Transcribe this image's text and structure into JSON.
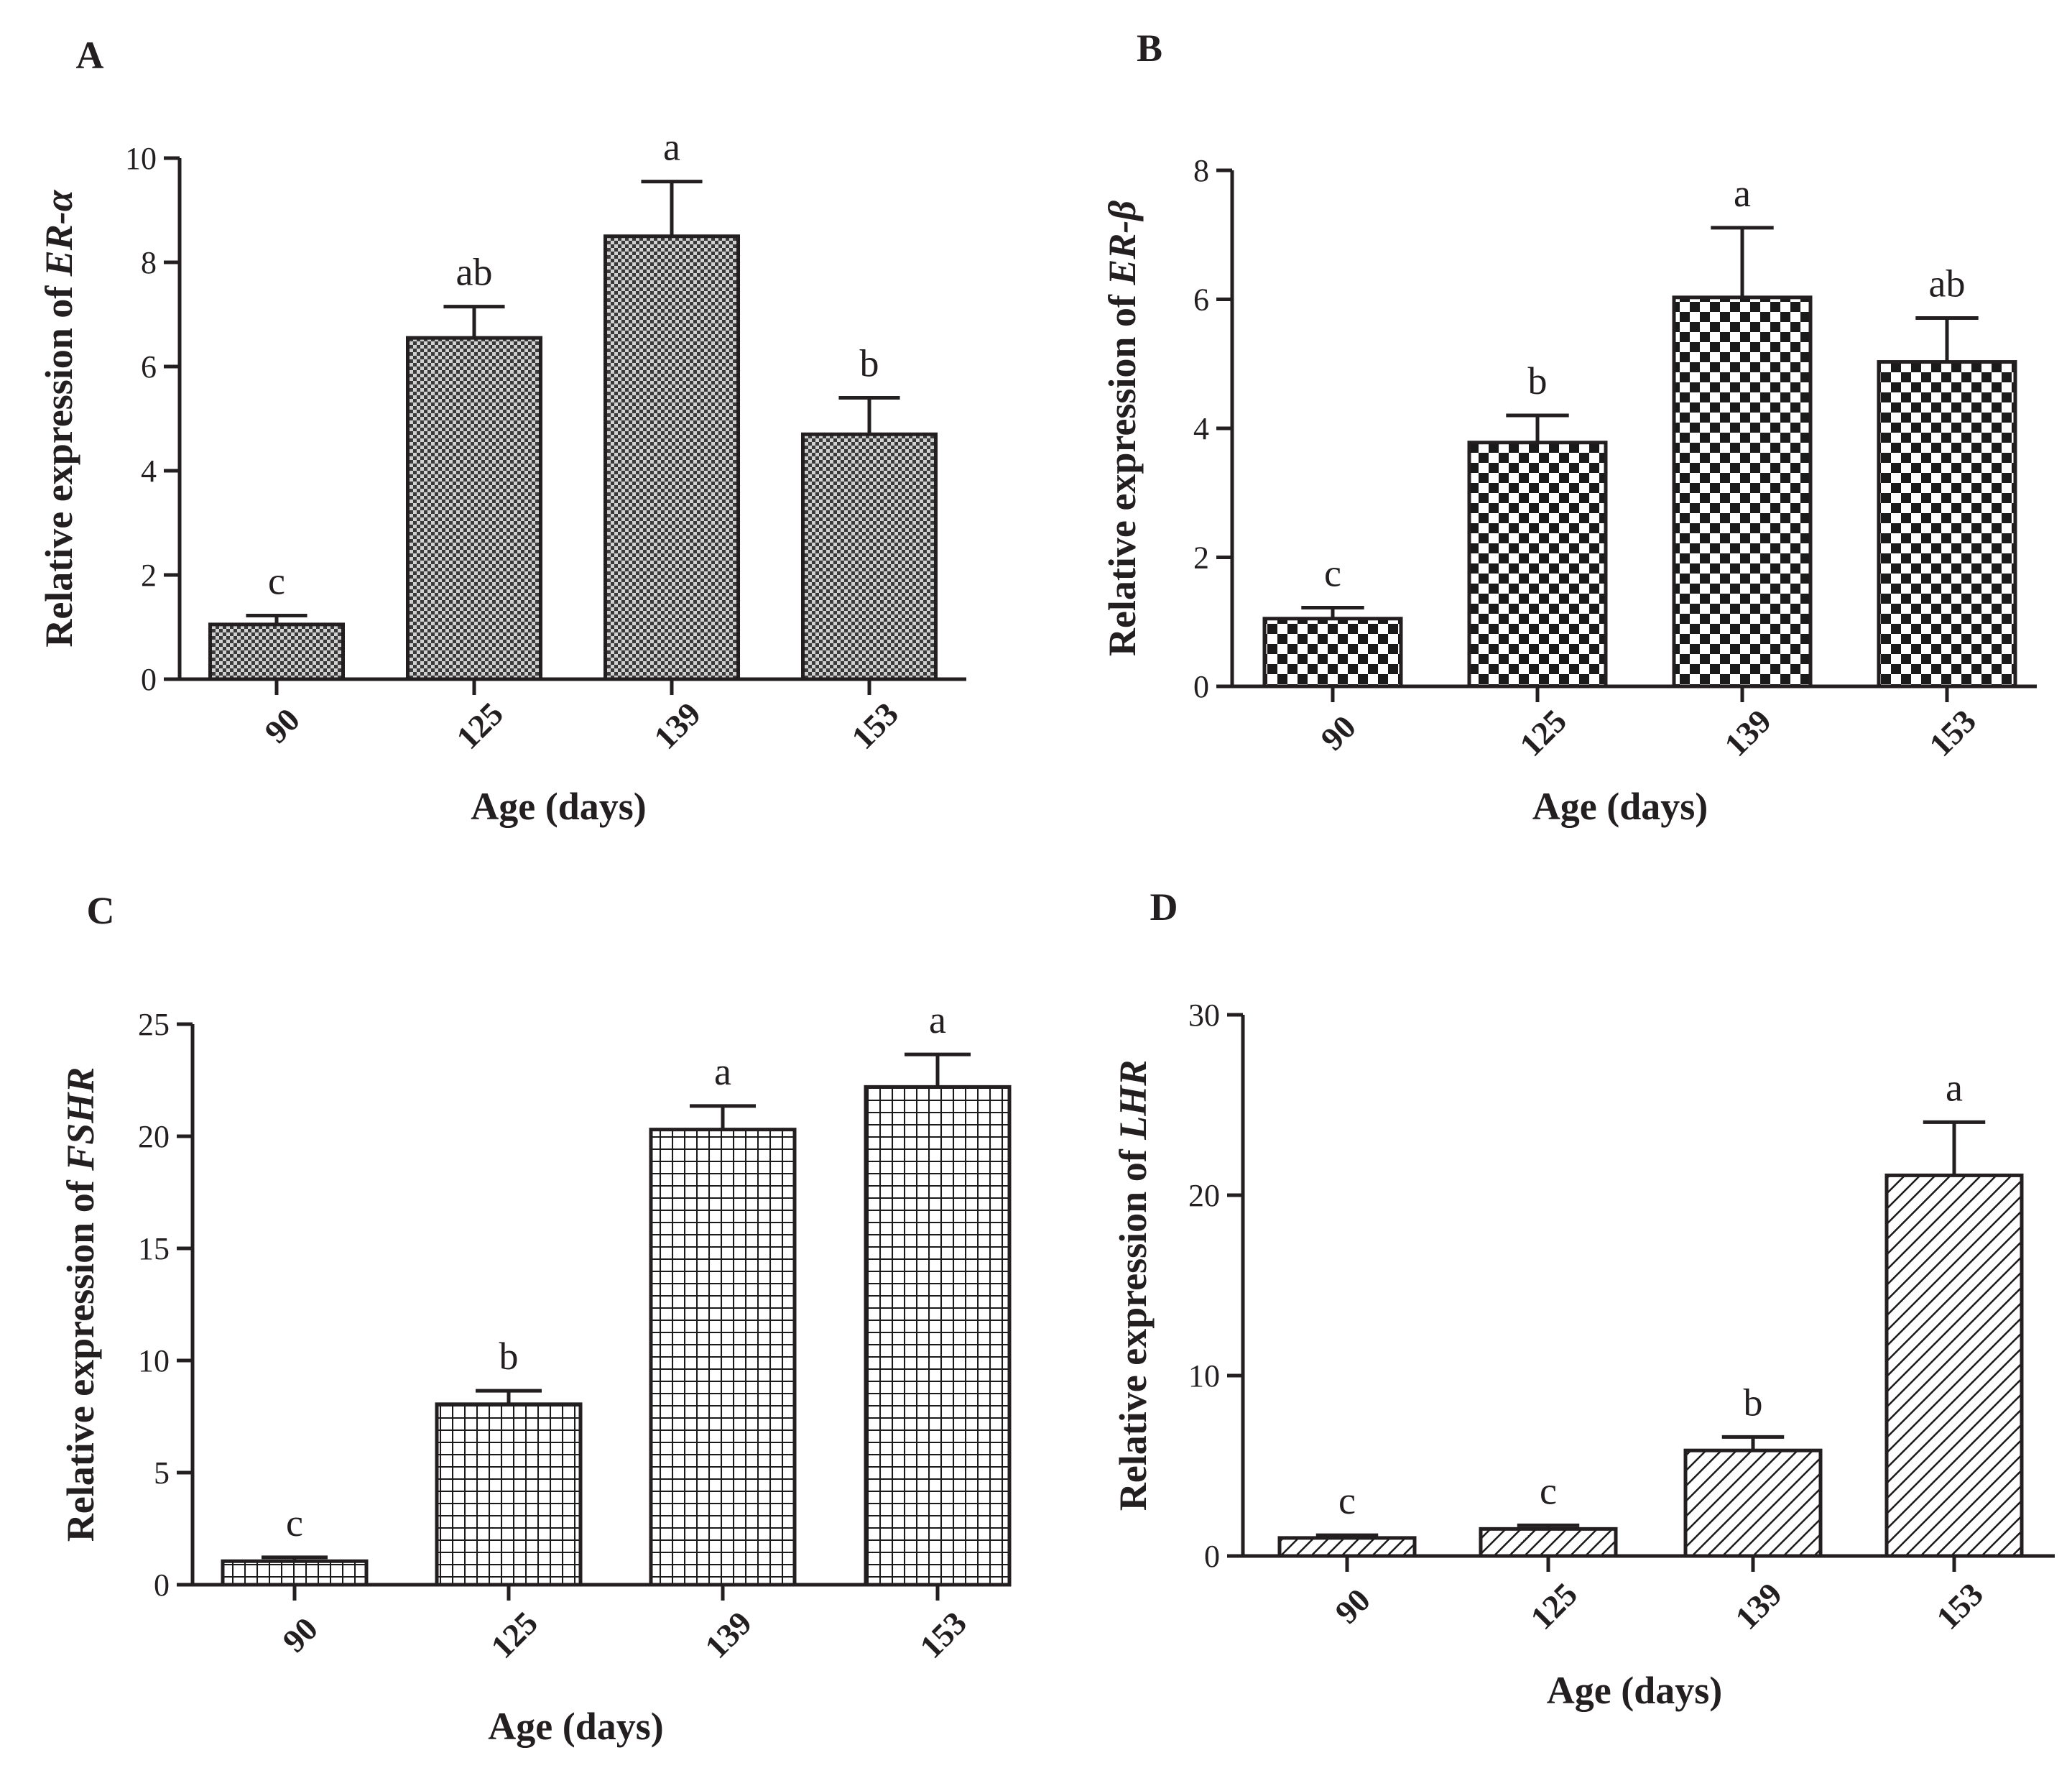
{
  "chart_data": [
    {
      "type": "bar",
      "panel_label": "A",
      "categories": [
        "90",
        "125",
        "139",
        "153"
      ],
      "values": [
        1.05,
        6.55,
        8.5,
        4.7
      ],
      "errors": [
        0.17,
        0.6,
        1.05,
        0.7
      ],
      "significance": [
        "c",
        "ab",
        "a",
        "b"
      ],
      "xlabel": "Age (days)",
      "ylabel_prefix": "Relative expression of ",
      "ylabel_gene": "ER-α",
      "ylim": [
        0,
        10
      ],
      "yticks": [
        "0",
        "2",
        "4",
        "6",
        "8",
        "10"
      ],
      "pattern": "fine-crosshatch"
    },
    {
      "type": "bar",
      "panel_label": "B",
      "categories": [
        "90",
        "125",
        "139",
        "153"
      ],
      "values": [
        1.05,
        3.78,
        6.03,
        5.03
      ],
      "errors": [
        0.17,
        0.42,
        1.08,
        0.68
      ],
      "significance": [
        "c",
        "b",
        "a",
        "ab"
      ],
      "xlabel": "Age (days)",
      "ylabel_prefix": "Relative expression of ",
      "ylabel_gene": "ER-β",
      "ylim": [
        0,
        8
      ],
      "yticks": [
        "0",
        "2",
        "4",
        "6",
        "8"
      ],
      "pattern": "checkerboard"
    },
    {
      "type": "bar",
      "panel_label": "C",
      "categories": [
        "90",
        "125",
        "139",
        "153"
      ],
      "values": [
        1.05,
        8.05,
        20.3,
        22.2
      ],
      "errors": [
        0.17,
        0.6,
        1.05,
        1.45
      ],
      "significance": [
        "c",
        "b",
        "a",
        "a"
      ],
      "xlabel": "Age (days)",
      "ylabel_prefix": "Relative expression of ",
      "ylabel_gene": "FSHR",
      "ylim": [
        0,
        25
      ],
      "yticks": [
        "0",
        "5",
        "10",
        "15",
        "20",
        "25"
      ],
      "pattern": "grid"
    },
    {
      "type": "bar",
      "panel_label": "D",
      "categories": [
        "90",
        "125",
        "139",
        "153"
      ],
      "values": [
        1.0,
        1.5,
        5.85,
        21.1
      ],
      "errors": [
        0.15,
        0.2,
        0.75,
        2.95
      ],
      "significance": [
        "c",
        "c",
        "b",
        "a"
      ],
      "xlabel": "Age (days)",
      "ylabel_prefix": "Relative expression of ",
      "ylabel_gene": "LHR",
      "ylim": [
        0,
        30
      ],
      "yticks": [
        "0",
        "10",
        "20",
        "30"
      ],
      "pattern": "diagonal-hatch"
    }
  ]
}
